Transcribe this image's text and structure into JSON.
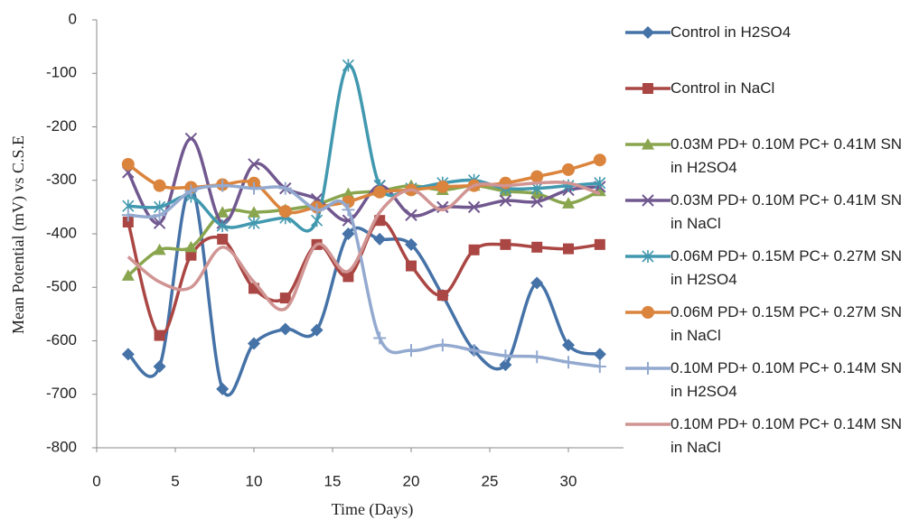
{
  "chart_data": {
    "type": "line",
    "smooth": true,
    "x_label": "Time (Days)",
    "y_label": "Mean Potential (mV) vs C.S.E",
    "xlim": [
      0,
      35
    ],
    "xticks": [
      0,
      5,
      10,
      15,
      20,
      25,
      30,
      35
    ],
    "ylim": [
      -800,
      0
    ],
    "yticks": [
      -800,
      -700,
      -600,
      -500,
      -400,
      -300,
      -200,
      -100,
      0
    ],
    "grid": false,
    "legend": "right",
    "x": [
      2,
      4,
      6,
      8,
      10,
      12,
      14,
      16,
      18,
      20,
      22,
      24,
      26,
      28,
      30,
      32
    ],
    "series": [
      {
        "name": "Control in H2SO4",
        "color": "#4572a7",
        "marker": "diamond",
        "values": [
          -625,
          -648,
          -315,
          -690,
          -605,
          -578,
          -580,
          -400,
          -410,
          -420,
          -515,
          -618,
          -645,
          -492,
          -608,
          -625
        ]
      },
      {
        "name": "Control in NaCl",
        "color": "#aa4643",
        "marker": "square",
        "values": [
          -378,
          -590,
          -440,
          -410,
          -502,
          -520,
          -420,
          -480,
          -375,
          -460,
          -515,
          -430,
          -420,
          -425,
          -428,
          -420
        ]
      },
      {
        "name": "0.03M PD+ 0.10M PC+ 0.41M SN in H2SO4",
        "color": "#89a54e",
        "marker": "triangle",
        "values": [
          -478,
          -430,
          -425,
          -360,
          -360,
          -355,
          -345,
          -325,
          -320,
          -310,
          -318,
          -310,
          -320,
          -325,
          -343,
          -320
        ]
      },
      {
        "name": "0.03M PD+ 0.10M PC+ 0.41M SN in NaCl",
        "color": "#71588f",
        "marker": "x",
        "values": [
          -285,
          -380,
          -222,
          -380,
          -270,
          -315,
          -335,
          -375,
          -310,
          -365,
          -350,
          -350,
          -338,
          -340,
          -318,
          -312
        ]
      },
      {
        "name": "0.06M PD+ 0.15M PC+ 0.27M SN in H2SO4",
        "color": "#4198af",
        "marker": "star",
        "values": [
          -348,
          -350,
          -330,
          -385,
          -380,
          -370,
          -375,
          -85,
          -310,
          -315,
          -305,
          -300,
          -315,
          -315,
          -310,
          -305
        ]
      },
      {
        "name": "0.06M PD+ 0.15M PC+ 0.27M SN in NaCl",
        "color": "#db843d",
        "marker": "circle",
        "values": [
          -270,
          -310,
          -313,
          -308,
          -305,
          -358,
          -350,
          -340,
          -322,
          -318,
          -312,
          -310,
          -305,
          -293,
          -280,
          -262
        ]
      },
      {
        "name": "0.10M PD+ 0.10M PC+ 0.14M SN in H2SO4",
        "color": "#93a9cf",
        "marker": "plus",
        "values": [
          -365,
          -365,
          -320,
          -310,
          -315,
          -315,
          -355,
          -355,
          -595,
          -618,
          -608,
          -618,
          -628,
          -630,
          -640,
          -648
        ]
      },
      {
        "name": "0.10M PD+ 0.10M PC+ 0.14M SN in NaCl",
        "color": "#d09493",
        "marker": "none",
        "values": [
          -443,
          -490,
          -500,
          -425,
          -490,
          -540,
          -420,
          -470,
          -360,
          -318,
          -355,
          -310,
          -310,
          -305,
          -305,
          -325
        ]
      }
    ]
  }
}
